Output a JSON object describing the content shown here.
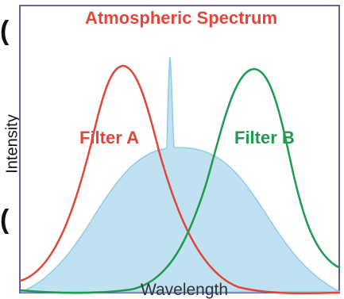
{
  "title": "Atmospheric Spectrum",
  "xlabel": "Wavelength",
  "ylabel": "Intensity",
  "filter_a_label": "Filter A",
  "filter_b_label": "Filter B",
  "colors": {
    "title": "#e2453a",
    "filter_a": "#e0473a",
    "filter_b": "#1f9a4f",
    "spectrum_fill": "#bfe1f1",
    "spectrum_stroke": "#8ecbe6",
    "frame": "#6a5aa8"
  }
}
